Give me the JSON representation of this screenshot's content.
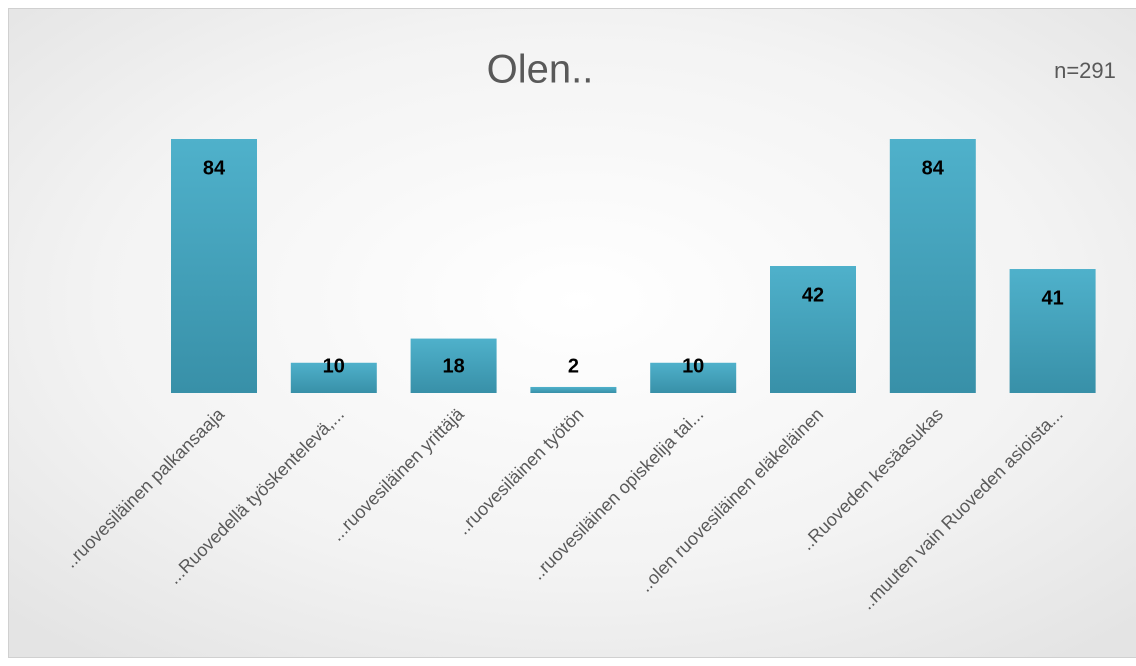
{
  "chart_data": {
    "type": "bar",
    "title": "Olen..",
    "annotation": "n=291",
    "categories": [
      "..ruovesiläinen palkansaaja",
      "...Ruovedellä työskentelevä,...",
      "...ruovesiläinen yrittäjä",
      "..ruovesiläinen työtön",
      "..ruovesiläinen opiskelija tai...",
      "..olen ruovesiläinen eläkeläinen",
      "..Ruoveden kesäasukas",
      "..muuten vain Ruoveden asioista..."
    ],
    "values": [
      84,
      10,
      18,
      2,
      10,
      42,
      84,
      41
    ],
    "color": "#4bacc6"
  }
}
